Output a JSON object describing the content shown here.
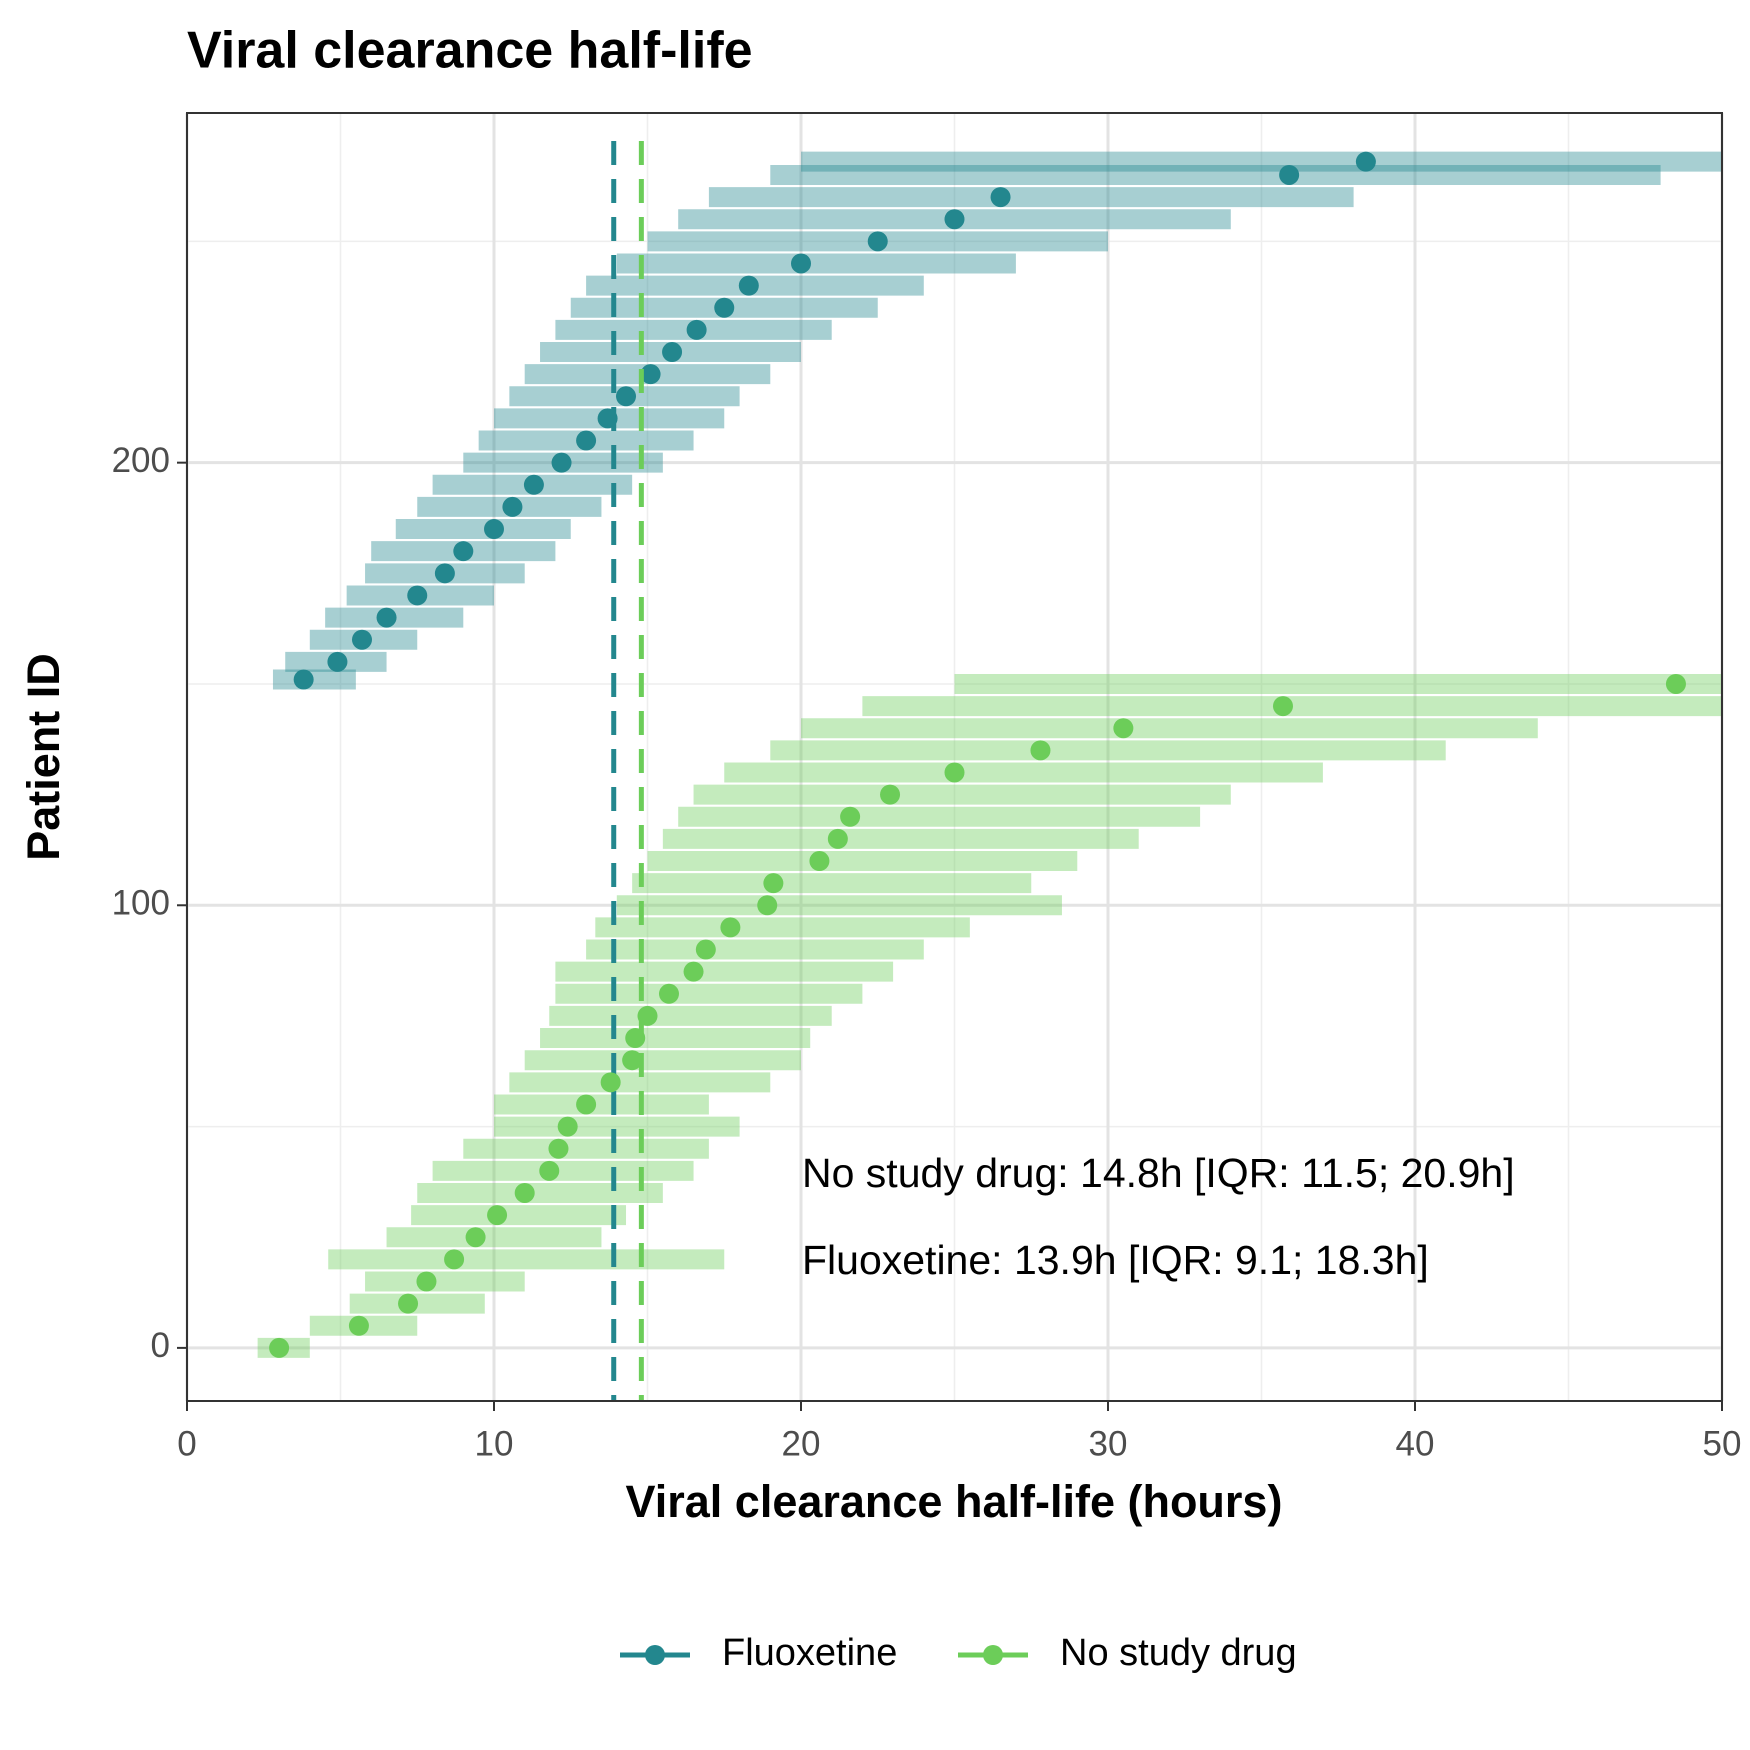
{
  "chart_data": {
    "type": "scatter",
    "title": "Viral clearance half-life",
    "x_label": "Viral clearance half-life (hours)",
    "y_label": "Patient ID",
    "xlim": [
      0,
      50
    ],
    "ylim": [
      -12,
      279
    ],
    "xticks": [
      0,
      10,
      20,
      30,
      40,
      50
    ],
    "yticks": [
      0,
      100,
      200
    ],
    "xminor": [
      5,
      15,
      25,
      35,
      45
    ],
    "yminor": [
      50,
      150,
      250
    ],
    "grid": true,
    "legend": "bottom",
    "series": [
      {
        "name": "Fluoxetine",
        "color": "#23878e",
        "median": 13.9,
        "values": [
          151,
          155,
          160,
          165,
          170,
          175,
          180,
          185,
          190,
          195,
          200,
          205,
          210,
          215,
          220,
          225,
          230,
          235,
          240,
          245,
          250,
          255,
          260,
          265,
          268
        ],
        "x": [
          3.8,
          4.9,
          5.7,
          6.5,
          7.5,
          8.4,
          9.0,
          10.0,
          10.6,
          11.3,
          12.2,
          13.0,
          13.7,
          14.3,
          15.1,
          15.8,
          16.6,
          17.5,
          18.3,
          20.0,
          22.5,
          25.0,
          26.5,
          35.9,
          38.4
        ],
        "lower": [
          2.8,
          3.2,
          4.0,
          4.5,
          5.2,
          5.8,
          6.0,
          6.8,
          7.5,
          8.0,
          9.0,
          9.5,
          10.0,
          10.5,
          11.0,
          11.5,
          12.0,
          12.5,
          13.0,
          14.0,
          15.0,
          16.0,
          17.0,
          19.0,
          20.0
        ],
        "upper": [
          5.5,
          6.5,
          7.5,
          9.0,
          10.0,
          11.0,
          12.0,
          12.5,
          13.5,
          14.5,
          15.5,
          16.5,
          17.5,
          18.0,
          19.0,
          20.0,
          21.0,
          22.5,
          24.0,
          27.0,
          30.0,
          34.0,
          38.0,
          48.0,
          52.0
        ]
      },
      {
        "name": "No study drug",
        "color": "#6ccd59",
        "median": 14.8,
        "values": [
          0,
          5,
          10,
          15,
          20,
          25,
          30,
          35,
          40,
          45,
          50,
          55,
          60,
          65,
          70,
          75,
          80,
          85,
          90,
          95,
          100,
          105,
          110,
          115,
          120,
          125,
          130,
          135,
          140,
          145,
          150
        ],
        "x": [
          3.0,
          5.6,
          7.2,
          7.8,
          8.7,
          9.4,
          10.1,
          11.0,
          11.8,
          12.1,
          12.4,
          13.0,
          13.8,
          14.5,
          14.6,
          15.0,
          15.7,
          16.5,
          16.9,
          17.7,
          18.9,
          19.1,
          20.6,
          21.2,
          21.6,
          22.9,
          25.0,
          27.8,
          30.5,
          35.7,
          48.5
        ],
        "lower": [
          2.3,
          4.0,
          5.3,
          5.8,
          4.6,
          6.5,
          7.3,
          7.5,
          8.0,
          9.0,
          10.0,
          10.0,
          10.5,
          11.0,
          11.5,
          11.8,
          12.0,
          12.0,
          13.0,
          13.3,
          14.0,
          14.5,
          15.0,
          15.5,
          16.0,
          16.5,
          17.5,
          19.0,
          20.0,
          22.0,
          25.0
        ],
        "upper": [
          4.0,
          7.5,
          9.7,
          11.0,
          17.5,
          13.5,
          14.3,
          15.5,
          16.5,
          17.0,
          18.0,
          17.0,
          19.0,
          20.0,
          20.3,
          21.0,
          22.0,
          23.0,
          24.0,
          25.5,
          28.5,
          27.5,
          29.0,
          31.0,
          33.0,
          34.0,
          37.0,
          41.0,
          44.0,
          50.0,
          52.0
        ]
      }
    ],
    "annotations": [
      "No study drug: 14.8h [IQR: 11.5; 20.9h]",
      "Fluoxetine: 13.9h [IQR: 9.1; 18.3h]"
    ]
  }
}
